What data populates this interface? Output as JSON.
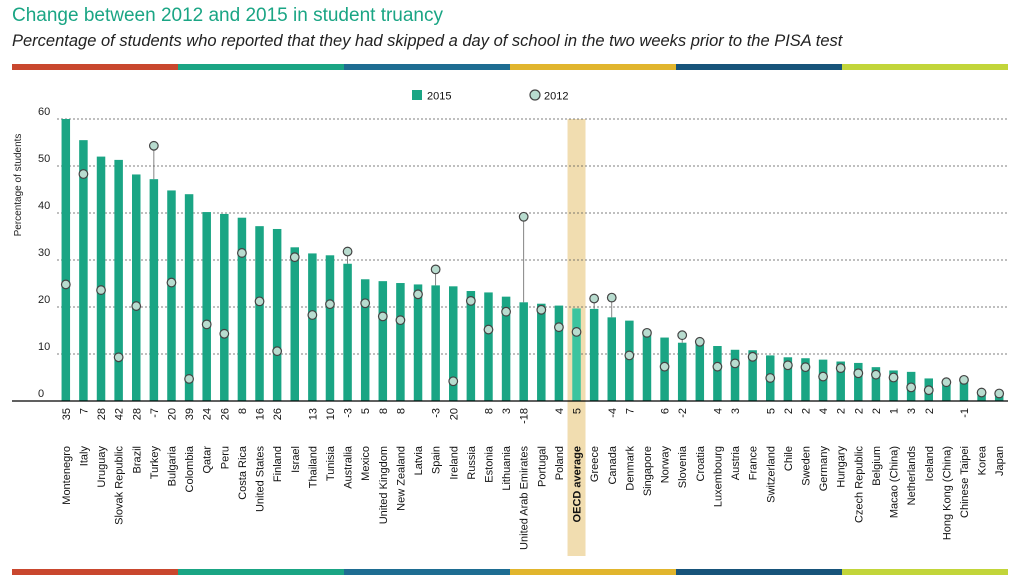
{
  "page": {
    "title": "Change between 2012 and 2015 in student truancy",
    "subtitle": "Percentage of students who reported that they had skipped a day of school in the two weeks prior to the PISA test"
  },
  "colors": {
    "bar": "#1aa584",
    "bar_highlight": "#3cc49f",
    "marker_fill": "#b8dccf",
    "marker_stroke": "#444444",
    "oecd_band": "#f1ddb0",
    "stripe": [
      "#c9472e",
      "#1aa584",
      "#1e6d92",
      "#e1b52d",
      "#17547a",
      "#c2d53a"
    ]
  },
  "chart_data": {
    "type": "bar",
    "title": "Change between 2012 and 2015 in student truancy",
    "subtitle": "Percentage of students who reported that they had skipped a day of school in the two weeks prior to the PISA test",
    "ylabel": "Percentage of students",
    "ylim": [
      0,
      60
    ],
    "yticks": [
      0,
      10,
      20,
      30,
      40,
      50,
      60
    ],
    "grid": true,
    "legend_position": "top-center",
    "highlight_category": "OECD average",
    "categories": [
      "Montenegro",
      "Italy",
      "Uruguay",
      "Slovak Republic",
      "Brazil",
      "Turkey",
      "Bulgaria",
      "Colombia",
      "Qatar",
      "Peru",
      "Costa Rica",
      "United States",
      "Finland",
      "Israel",
      "Thailand",
      "Tunisia",
      "Australia",
      "Mexico",
      "United Kingdom",
      "New Zealand",
      "Latvia",
      "Spain",
      "Ireland",
      "Russia",
      "Estonia",
      "Lithuania",
      "United Arab Emirates",
      "Portugal",
      "Poland",
      "OECD average",
      "Greece",
      "Canada",
      "Denmark",
      "Singapore",
      "Norway",
      "Slovenia",
      "Croatia",
      "Luxembourg",
      "Austria",
      "France",
      "Switzerland",
      "Chile",
      "Sweden",
      "Germany",
      "Hungary",
      "Czech Republic",
      "Belgium",
      "Macao (China)",
      "Netherlands",
      "Iceland",
      "Hong Kong (China)",
      "Chinese Taipei",
      "Korea",
      "Japan"
    ],
    "change_labels": [
      "35",
      "7",
      "28",
      "42",
      "28",
      "-7",
      "20",
      "39",
      "24",
      "26",
      "8",
      "16",
      "26",
      "",
      "13",
      "10",
      "-3",
      "5",
      "8",
      "8",
      "",
      "-3",
      "20",
      "",
      "8",
      "3",
      "-18",
      "",
      "4",
      "5",
      "",
      "-4",
      "7",
      "",
      "6",
      "-2",
      "",
      "4",
      "3",
      "",
      "5",
      "2",
      "2",
      "4",
      "2",
      "2",
      "2",
      "1",
      "3",
      "2",
      "",
      "-1",
      "",
      ""
    ],
    "series": [
      {
        "name": "2015",
        "marker": "bar",
        "values": [
          60.0,
          55.5,
          52.0,
          51.3,
          48.2,
          47.2,
          44.8,
          44.0,
          40.2,
          39.8,
          39.0,
          37.2,
          36.6,
          32.7,
          31.4,
          31.0,
          29.2,
          25.9,
          25.5,
          25.1,
          24.8,
          24.6,
          24.4,
          23.4,
          23.1,
          22.2,
          21.0,
          20.7,
          20.3,
          19.7,
          19.6,
          17.8,
          17.1,
          14.4,
          13.5,
          12.4,
          12.4,
          11.7,
          10.9,
          10.8,
          9.7,
          9.3,
          9.1,
          8.8,
          8.4,
          8.1,
          7.2,
          6.5,
          6.2,
          4.8,
          4.3,
          4.0,
          2.0,
          1.8
        ]
      },
      {
        "name": "2012",
        "marker": "circle",
        "values": [
          24.8,
          48.3,
          23.6,
          9.3,
          20.2,
          54.3,
          25.2,
          4.7,
          16.3,
          14.3,
          31.5,
          21.2,
          10.6,
          30.6,
          18.3,
          20.6,
          31.8,
          20.8,
          18.0,
          17.2,
          22.7,
          28.0,
          4.2,
          21.3,
          15.2,
          19.0,
          39.2,
          19.4,
          15.7,
          14.7,
          21.8,
          22.0,
          9.7,
          14.5,
          7.3,
          14.0,
          12.6,
          7.3,
          8.0,
          9.4,
          4.9,
          7.6,
          7.2,
          5.2,
          7.0,
          5.9,
          5.6,
          5.0,
          2.9,
          2.3,
          4.0,
          4.5,
          1.8,
          1.6
        ]
      }
    ]
  }
}
